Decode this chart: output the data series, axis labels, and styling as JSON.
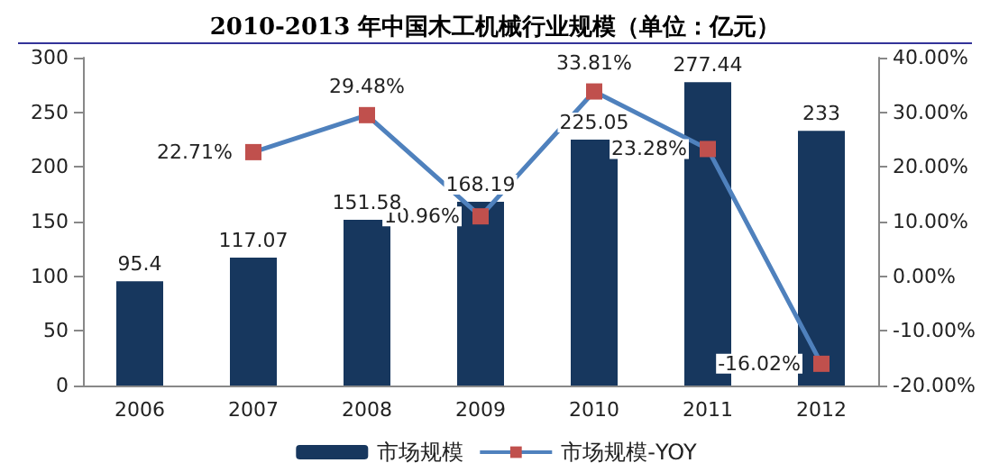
{
  "chart_data": {
    "type": "bar",
    "title": "2010-2013 年中国木工机械行业规模（单位：亿元）",
    "categories": [
      "2006",
      "2007",
      "2008",
      "2009",
      "2010",
      "2011",
      "2012"
    ],
    "series": [
      {
        "name": "市场规模",
        "color": "#17375e",
        "values": [
          95.4,
          117.07,
          151.58,
          168.19,
          225.05,
          277.44,
          233
        ],
        "value_labels": [
          "95.4",
          "117.07",
          "151.58",
          "168.19",
          "225.05",
          "277.44",
          "233"
        ]
      },
      {
        "name": "市场规模-YOY",
        "type": "line",
        "axis": "y2",
        "color": "#4f81bd",
        "marker": "square",
        "values": [
          null,
          22.71,
          29.48,
          10.96,
          33.81,
          23.28,
          -16.02
        ],
        "value_labels": [
          null,
          "22.71%",
          "29.48%",
          "10.96%",
          "33.81%",
          "23.28%",
          "-16.02%"
        ]
      }
    ],
    "ylim": [
      0,
      300
    ],
    "yticks": [
      0,
      50,
      100,
      150,
      200,
      250,
      300
    ],
    "y2lim": [
      -20,
      40
    ],
    "y2ticks": [
      {
        "value": -20,
        "label": "-20.00%"
      },
      {
        "value": -10,
        "label": "-10.00%"
      },
      {
        "value": 0,
        "label": "0.00%"
      },
      {
        "value": 10,
        "label": "10.00%"
      },
      {
        "value": 20,
        "label": "20.00%"
      },
      {
        "value": 30,
        "label": "30.00%"
      },
      {
        "value": 40,
        "label": "40.00%"
      }
    ],
    "grid": false,
    "legend": "bottom"
  }
}
